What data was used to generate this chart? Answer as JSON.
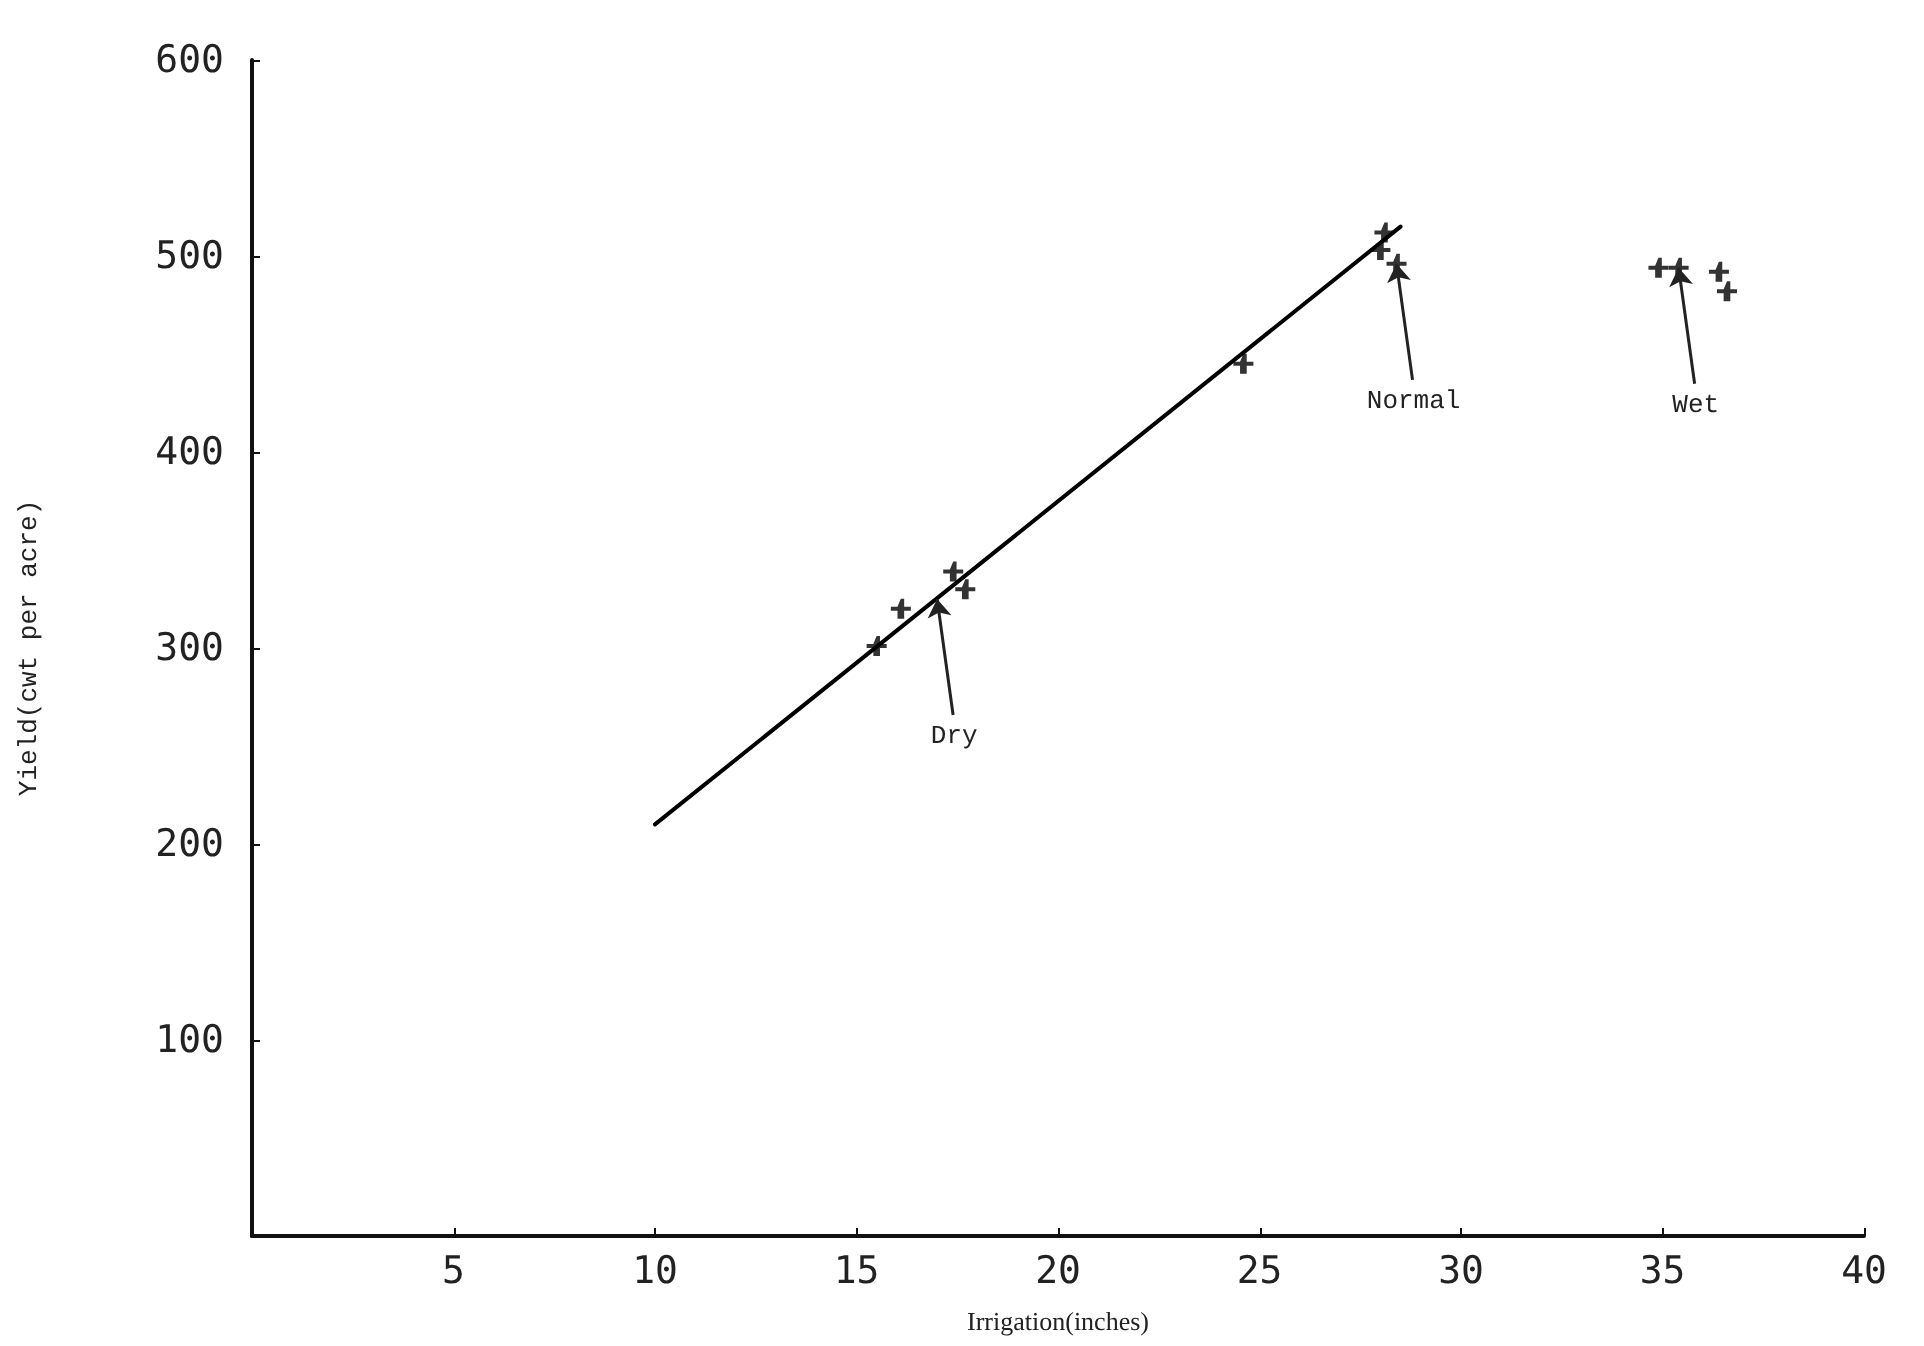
{
  "chart_data": {
    "type": "scatter",
    "xlabel": "Irrigation(inches)",
    "ylabel": "Yield(cwt per acre)",
    "xlim": [
      0,
      40
    ],
    "xticks": [
      5,
      10,
      15,
      20,
      25,
      30,
      35,
      40
    ],
    "ylim": [
      0,
      600
    ],
    "yticks": [
      100,
      200,
      300,
      400,
      500,
      600
    ],
    "grid": false,
    "marker": "cross",
    "series": [
      {
        "type": "scatter",
        "color": "#000000",
        "x": [
          15.5,
          16.1,
          17.4,
          17.7,
          24.6,
          28.0,
          28.1,
          28.4,
          34.9,
          35.4,
          36.4,
          36.6
        ],
        "values": [
          301,
          320,
          339,
          330,
          445,
          503,
          512,
          496,
          494,
          494,
          492,
          482
        ]
      },
      {
        "type": "line",
        "color": "#000000",
        "marker": "none",
        "line_style": "solid",
        "x": [
          10,
          28.5
        ],
        "values": [
          210,
          515
        ]
      }
    ],
    "annotations": [
      {
        "text": "Dry",
        "x": 17,
        "y": 325
      },
      {
        "text": "Normal",
        "x": 28.4,
        "y": 496
      },
      {
        "text": "Wet",
        "x": 35.4,
        "y": 494
      }
    ]
  }
}
